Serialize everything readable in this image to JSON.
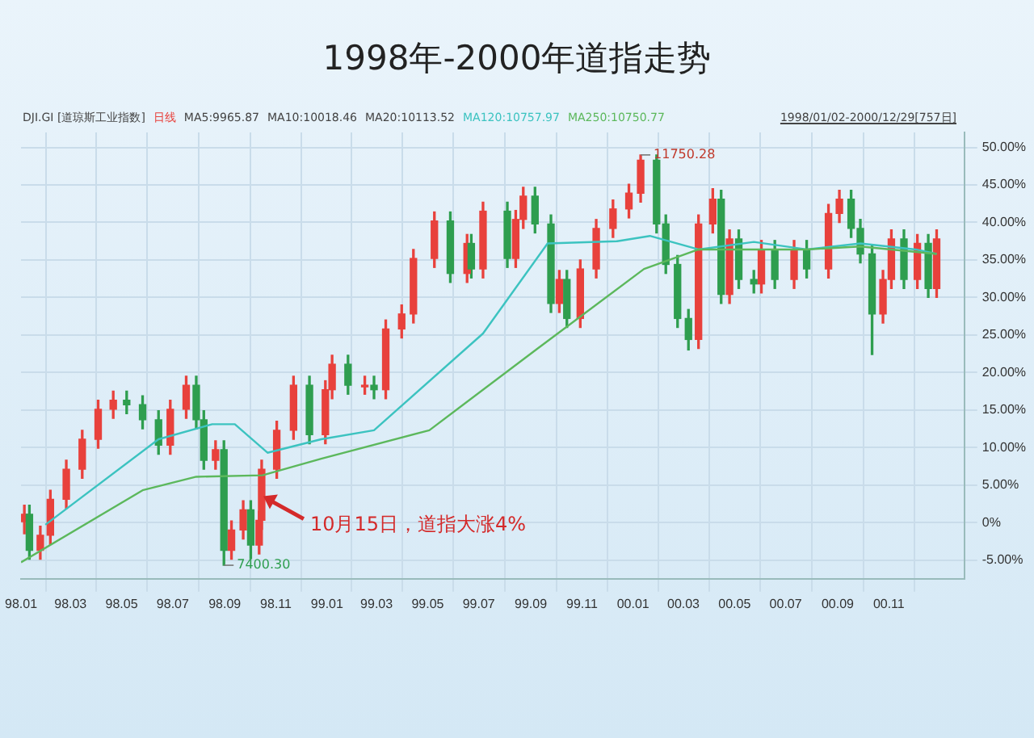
{
  "chart_data": {
    "type": "candlestick",
    "title": "1998年-2000年道指走势",
    "subtitle": "DJI.GI [道琼斯工业指数]",
    "xlim": [
      "1998-01-01",
      "2001-01-30"
    ],
    "xticks": [
      {
        "value": "1998-01",
        "label": "98.01"
      },
      {
        "value": "1998-03",
        "label": "98.03"
      },
      {
        "value": "1998-05",
        "label": "98.05"
      },
      {
        "value": "1998-07",
        "label": "98.07"
      },
      {
        "value": "1998-09",
        "label": "98.09"
      },
      {
        "value": "1998-11",
        "label": "98.11"
      },
      {
        "value": "1999-01",
        "label": "99.01"
      },
      {
        "value": "1999-03",
        "label": "99.03"
      },
      {
        "value": "1999-05",
        "label": "99.05"
      },
      {
        "value": "1999-07",
        "label": "99.07"
      },
      {
        "value": "1999-09",
        "label": "99.09"
      },
      {
        "value": "1999-11",
        "label": "99.11"
      },
      {
        "value": "2000-01",
        "label": "00.01"
      },
      {
        "value": "2000-03",
        "label": "00.03"
      },
      {
        "value": "2000-05",
        "label": "00.05"
      },
      {
        "value": "2000-07",
        "label": "00.07"
      },
      {
        "value": "2000-09",
        "label": "00.09"
      },
      {
        "value": "2000-11",
        "label": "00.11"
      }
    ],
    "ylim": [
      -7.5,
      52
    ],
    "yticks": [
      {
        "value": -5,
        "label": "-5.00%"
      },
      {
        "value": 0,
        "label": "0%"
      },
      {
        "value": 5,
        "label": "5.00%"
      },
      {
        "value": 10,
        "label": "10.00%"
      },
      {
        "value": 15,
        "label": "15.00%"
      },
      {
        "value": 20,
        "label": "20.00%"
      },
      {
        "value": 25,
        "label": "25.00%"
      },
      {
        "value": 30,
        "label": "30.00%"
      },
      {
        "value": 35,
        "label": "35.00%"
      },
      {
        "value": 40,
        "label": "40.00%"
      },
      {
        "value": 45,
        "label": "45.00%"
      },
      {
        "value": 50,
        "label": "50.00%"
      }
    ],
    "grid": true,
    "legend": "top left",
    "series": [
      {
        "name": "日线",
        "color": "#e8413c",
        "x": [
          "1998-01-05",
          "1998-01-11",
          "1998-01-24",
          "1998-02-05",
          "1998-02-24",
          "1998-03-15",
          "1998-04-03",
          "1998-04-21",
          "1998-05-07",
          "1998-05-26",
          "1998-06-14",
          "1998-06-28",
          "1998-07-17",
          "1998-07-29",
          "1998-08-07",
          "1998-08-21",
          "1998-08-31",
          "1998-09-09",
          "1998-09-23",
          "1998-10-02",
          "1998-10-12",
          "1998-10-15",
          "1998-11-02",
          "1998-11-22",
          "1998-12-11",
          "1998-12-30",
          "1999-01-07",
          "1999-01-26",
          "1999-02-15",
          "1999-02-26",
          "1999-03-12",
          "1999-03-31",
          "1999-04-14",
          "1999-05-09",
          "1999-05-28",
          "1999-06-17",
          "1999-06-22",
          "1999-07-06",
          "1999-08-04",
          "1999-08-14",
          "1999-08-23",
          "1999-09-06",
          "1999-09-25",
          "1999-10-05",
          "1999-10-14",
          "1999-10-30",
          "1999-11-18",
          "1999-12-08",
          "1999-12-27",
          "2000-01-10",
          "2000-01-29",
          "2000-02-09",
          "2000-02-23",
          "2000-03-07",
          "2000-03-19",
          "2000-04-05",
          "2000-04-15",
          "2000-04-25",
          "2000-05-06",
          "2000-05-24",
          "2000-06-02",
          "2000-06-18",
          "2000-07-11",
          "2000-07-26",
          "2000-08-21",
          "2000-09-03",
          "2000-09-17",
          "2000-09-28",
          "2000-10-12",
          "2000-10-25",
          "2000-11-04",
          "2000-11-19",
          "2000-12-05",
          "2000-12-18",
          "2000-12-28"
        ],
        "ohlc": [
          [
            0,
            2.3,
            -1.5,
            1.1
          ],
          [
            1.1,
            2.3,
            -4.9,
            -3.7
          ],
          [
            -3.7,
            -0.5,
            -4.9,
            -1.7
          ],
          [
            -1.7,
            4.3,
            -2.9,
            3.1
          ],
          [
            3.1,
            8.3,
            1.9,
            7.1
          ],
          [
            7.1,
            12.3,
            5.9,
            11.1
          ],
          [
            11.1,
            16.3,
            9.9,
            15.1
          ],
          [
            15.1,
            17.5,
            13.9,
            16.3
          ],
          [
            16.3,
            17.5,
            14.5,
            15.7
          ],
          [
            15.7,
            16.9,
            12.5,
            13.7
          ],
          [
            13.7,
            14.9,
            9.1,
            10.3
          ],
          [
            10.3,
            16.3,
            9.1,
            15.1
          ],
          [
            15.1,
            19.5,
            13.9,
            18.3
          ],
          [
            18.3,
            19.5,
            12.5,
            13.7
          ],
          [
            13.7,
            14.9,
            7.1,
            8.3
          ],
          [
            8.3,
            10.9,
            7.1,
            9.7
          ],
          [
            9.7,
            10.9,
            -5.7,
            -3.7
          ],
          [
            -3.7,
            0.2,
            -4.9,
            -1.0
          ],
          [
            -1.0,
            2.9,
            -2.2,
            1.7
          ],
          [
            1.7,
            2.9,
            -4.8,
            -3.0
          ],
          [
            -3.0,
            1.5,
            -4.2,
            0.3
          ],
          [
            0.3,
            8.3,
            -0.9,
            7.1
          ],
          [
            7.1,
            13.5,
            5.9,
            12.3
          ],
          [
            12.3,
            19.5,
            11.1,
            18.3
          ],
          [
            18.3,
            19.5,
            10.5,
            11.7
          ],
          [
            11.7,
            18.9,
            10.5,
            17.7
          ],
          [
            17.7,
            22.3,
            16.5,
            21.1
          ],
          [
            21.1,
            22.3,
            17.1,
            18.3
          ],
          [
            18.3,
            19.5,
            17.1,
            18.3
          ],
          [
            18.3,
            19.5,
            16.5,
            17.7
          ],
          [
            17.7,
            27.0,
            16.5,
            25.8
          ],
          [
            25.8,
            29.0,
            24.6,
            27.8
          ],
          [
            27.8,
            36.4,
            26.6,
            35.2
          ],
          [
            35.2,
            41.4,
            34.0,
            40.2
          ],
          [
            40.2,
            41.4,
            32.0,
            33.2
          ],
          [
            33.2,
            38.4,
            32.0,
            37.2
          ],
          [
            37.2,
            38.4,
            32.6,
            33.8
          ],
          [
            33.8,
            42.7,
            32.6,
            41.5
          ],
          [
            41.5,
            42.7,
            34.0,
            35.2
          ],
          [
            35.2,
            41.6,
            34.0,
            40.4
          ],
          [
            40.4,
            44.7,
            39.2,
            43.5
          ],
          [
            43.5,
            44.7,
            38.6,
            39.8
          ],
          [
            39.8,
            41.0,
            28.0,
            29.2
          ],
          [
            29.2,
            33.6,
            28.0,
            32.4
          ],
          [
            32.4,
            33.6,
            26.0,
            27.2
          ],
          [
            27.2,
            35.0,
            26.0,
            33.8
          ],
          [
            33.8,
            40.4,
            32.6,
            39.2
          ],
          [
            39.2,
            43.0,
            38.0,
            41.8
          ],
          [
            41.8,
            45.1,
            40.6,
            43.9
          ],
          [
            43.9,
            49.0,
            42.7,
            48.3
          ],
          [
            48.3,
            49.0,
            38.6,
            39.8
          ],
          [
            39.8,
            41.0,
            33.2,
            34.4
          ],
          [
            34.4,
            35.6,
            26.0,
            27.2
          ],
          [
            27.2,
            28.4,
            23.0,
            24.4
          ],
          [
            24.4,
            41.0,
            23.2,
            39.8
          ],
          [
            39.8,
            44.5,
            38.6,
            43.1
          ],
          [
            43.1,
            44.3,
            29.2,
            30.4
          ],
          [
            30.4,
            39.0,
            29.2,
            37.8
          ],
          [
            37.8,
            39.0,
            31.2,
            32.4
          ],
          [
            32.4,
            33.6,
            30.6,
            31.8
          ],
          [
            31.8,
            37.6,
            30.6,
            36.4
          ],
          [
            36.4,
            37.6,
            31.2,
            32.4
          ],
          [
            32.4,
            37.6,
            31.2,
            36.4
          ],
          [
            36.4,
            37.6,
            32.6,
            33.8
          ],
          [
            33.8,
            42.4,
            32.6,
            41.2
          ],
          [
            41.2,
            44.3,
            40.0,
            43.1
          ],
          [
            43.1,
            44.3,
            38.0,
            39.2
          ],
          [
            39.2,
            40.4,
            34.6,
            35.8
          ],
          [
            35.8,
            37.0,
            22.4,
            27.8
          ],
          [
            27.8,
            33.6,
            26.6,
            32.4
          ],
          [
            32.4,
            39.0,
            31.2,
            37.8
          ],
          [
            37.8,
            39.0,
            31.2,
            32.4
          ],
          [
            32.4,
            38.4,
            31.2,
            37.2
          ],
          [
            37.2,
            38.4,
            30.0,
            31.2
          ],
          [
            31.2,
            39.0,
            30.0,
            37.8
          ]
        ],
        "colors": [
          "#e8413c",
          "#2e9e4f",
          "#e8413c",
          "#e8413c",
          "#e8413c",
          "#e8413c",
          "#e8413c",
          "#e8413c",
          "#2e9e4f",
          "#2e9e4f",
          "#2e9e4f",
          "#e8413c",
          "#e8413c",
          "#2e9e4f",
          "#2e9e4f",
          "#e8413c",
          "#2e9e4f",
          "#e8413c",
          "#e8413c",
          "#2e9e4f",
          "#e8413c",
          "#e8413c",
          "#e8413c",
          "#e8413c",
          "#2e9e4f",
          "#e8413c",
          "#e8413c",
          "#2e9e4f",
          "#e8413c",
          "#2e9e4f",
          "#e8413c",
          "#e8413c",
          "#e8413c",
          "#e8413c",
          "#2e9e4f",
          "#e8413c",
          "#2e9e4f",
          "#e8413c",
          "#2e9e4f",
          "#e8413c",
          "#e8413c",
          "#2e9e4f",
          "#2e9e4f",
          "#e8413c",
          "#2e9e4f",
          "#e8413c",
          "#e8413c",
          "#e8413c",
          "#e8413c",
          "#e8413c",
          "#2e9e4f",
          "#2e9e4f",
          "#2e9e4f",
          "#2e9e4f",
          "#e8413c",
          "#e8413c",
          "#2e9e4f",
          "#e8413c",
          "#2e9e4f",
          "#2e9e4f",
          "#e8413c",
          "#2e9e4f",
          "#e8413c",
          "#2e9e4f",
          "#e8413c",
          "#e8413c",
          "#2e9e4f",
          "#2e9e4f",
          "#2e9e4f",
          "#e8413c",
          "#e8413c",
          "#2e9e4f",
          "#e8413c",
          "#2e9e4f",
          "#e8413c"
        ]
      },
      {
        "name": "MA120:10757.97",
        "type": "line",
        "color": "#3cc3c0",
        "x": [
          "1998-01-30",
          "1998-06-14",
          "1998-08-17",
          "1998-09-13",
          "1998-10-22",
          "1998-12-25",
          "1999-02-26",
          "1999-07-06",
          "1999-09-21",
          "1999-12-13",
          "2000-01-21",
          "2000-03-19",
          "2000-05-24",
          "2000-07-26",
          "2000-09-28",
          "2000-12-03",
          "2000-12-28"
        ],
        "values": [
          -0.3,
          11.1,
          13.1,
          13.1,
          9.3,
          11.1,
          12.3,
          25.2,
          37.2,
          37.5,
          38.2,
          36.4,
          37.4,
          36.4,
          37.2,
          36.4,
          35.8
        ]
      },
      {
        "name": "MA250:10750.77",
        "type": "line",
        "color": "#5cb85c",
        "x": [
          "1998-01-01",
          "1998-05-26",
          "1998-07-29",
          "1998-10-16",
          "1998-12-25",
          "1999-05-03",
          "1999-09-08",
          "2000-01-14",
          "2000-03-19",
          "2000-07-26",
          "2000-09-28",
          "2000-12-28"
        ],
        "values": [
          -5.3,
          4.3,
          6.1,
          6.3,
          8.5,
          12.3,
          23.1,
          33.8,
          36.4,
          36.4,
          36.8,
          35.8
        ]
      }
    ],
    "annotations": [
      "MA5:9965.87",
      "MA10:10018.46",
      "MA20:10113.52",
      "1998/01/02-2000/12/29[757日]",
      {
        "text": "11750.28",
        "x": "2000-01-10",
        "y": 49.0
      },
      {
        "text": "7400.30",
        "x": "1998-08-31",
        "y": -5.7
      },
      {
        "text": "10月15日，道指大涨4%",
        "x": "1998-10-15",
        "y": 3.5
      }
    ]
  }
}
